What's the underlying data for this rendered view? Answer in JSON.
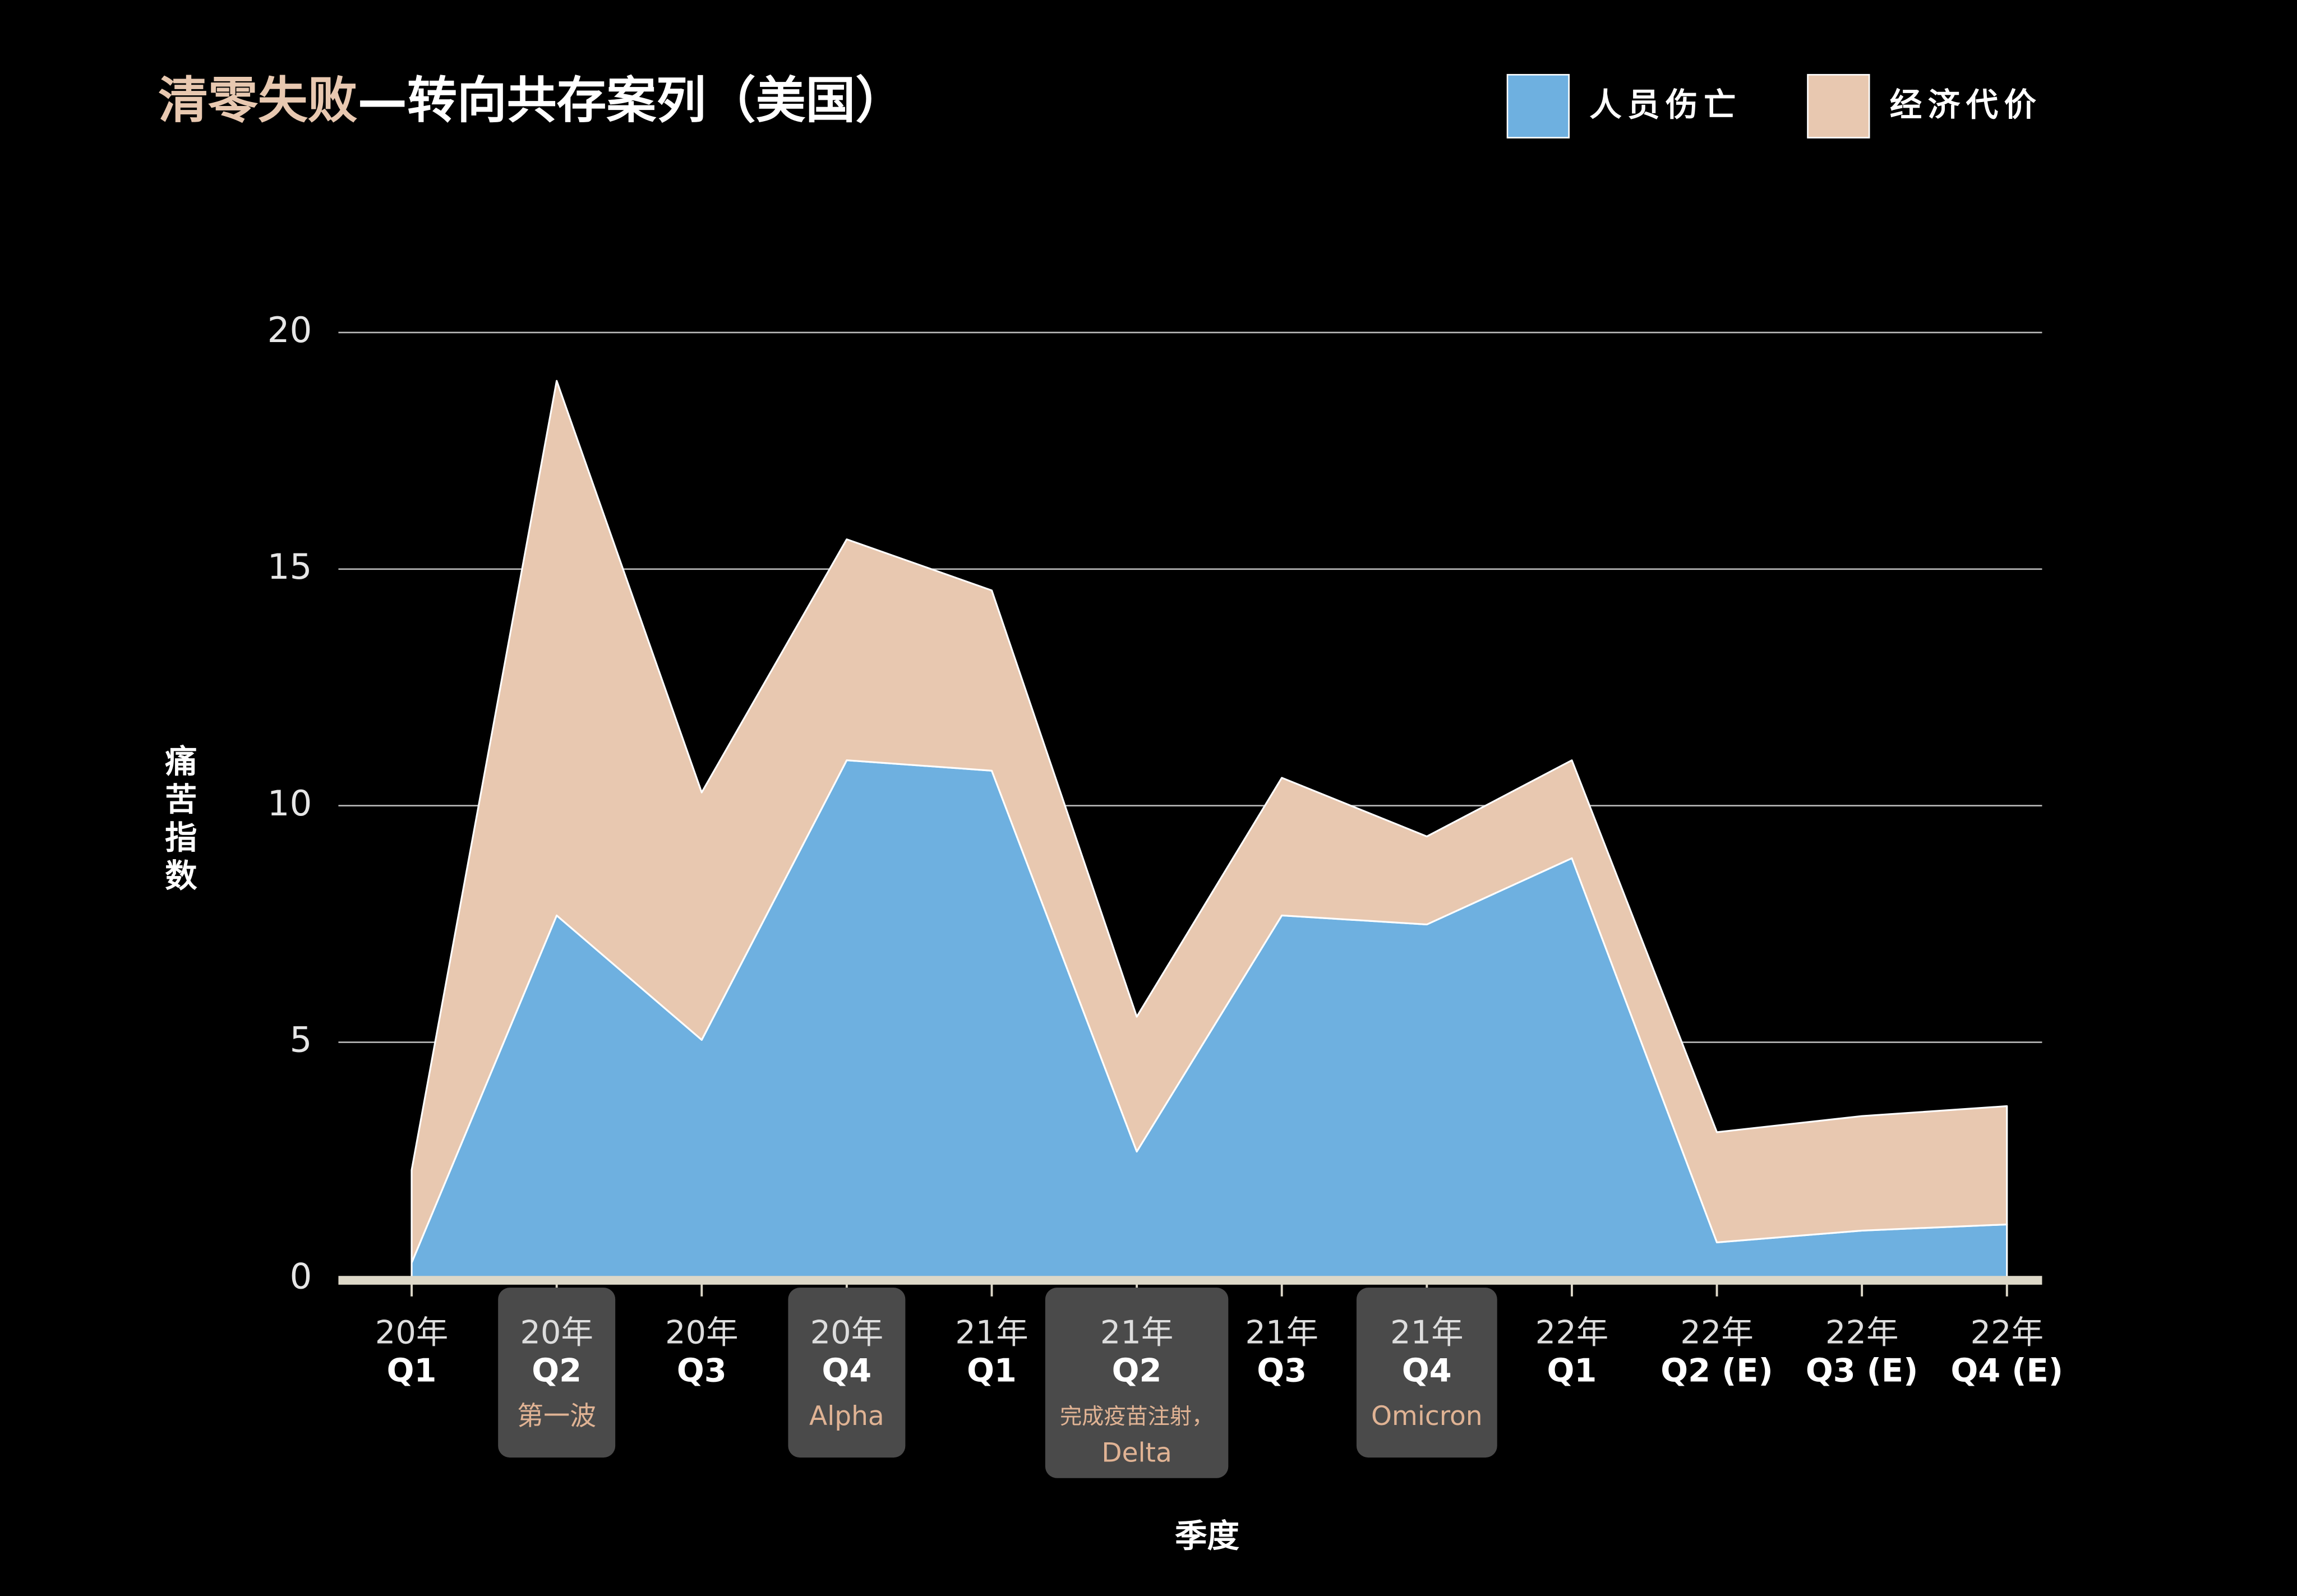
{
  "chart_data": {
    "type": "stacked_area",
    "title": [
      "清零失败",
      "—转向共存案列（美国）"
    ],
    "x_label": "季度",
    "y_label": "痛苦指数",
    "categories": [
      [
        "20年",
        "Q1"
      ],
      [
        "20年",
        "Q2"
      ],
      [
        "20年",
        "Q3"
      ],
      [
        "20年",
        "Q4"
      ],
      [
        "21年",
        "Q1"
      ],
      [
        "21年",
        "Q2"
      ],
      [
        "21年",
        "Q3"
      ],
      [
        "21年",
        "Q4"
      ],
      [
        "22年",
        "Q1"
      ],
      [
        "22年",
        "Q2 (E)"
      ],
      [
        "22年",
        "Q3 (E)"
      ],
      [
        "22年",
        "Q4 (E)"
      ]
    ],
    "category_notes": [
      null,
      [
        "第一波"
      ],
      null,
      [
        "Alpha"
      ],
      null,
      [
        "完成疫苗注射，",
        "Delta"
      ],
      null,
      [
        "Omicron"
      ],
      null,
      null,
      null,
      null
    ],
    "series": [
      {
        "name": "人员伤亡",
        "color": "#6eb0e0",
        "values": [
          0.34,
          7.68,
          5.05,
          10.96,
          10.74,
          2.69,
          7.68,
          7.49,
          8.89,
          0.77,
          1.02,
          1.15
        ]
      },
      {
        "name": "经济代价",
        "color": "#e8c8b0",
        "values": [
          1.96,
          11.3,
          5.23,
          4.67,
          3.81,
          2.85,
          2.91,
          1.86,
          2.07,
          2.33,
          2.42,
          2.5
        ]
      }
    ],
    "ylim": [
      0,
      20
    ],
    "yticks": [
      0,
      5,
      10,
      15,
      20
    ],
    "grid": true
  }
}
